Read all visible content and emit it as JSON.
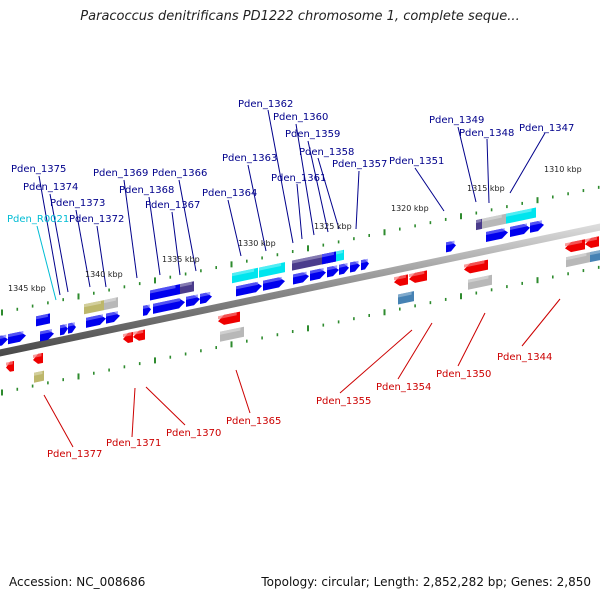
{
  "title": "Paracoccus denitrificans PD1222 chromosome 1, complete seque...",
  "footer": {
    "accession": "Accession: NC_008686",
    "summary": "Topology: circular; Length: 2,852,282 bp; Genes: 2,850"
  },
  "colors": {
    "forward_label": "#00008b",
    "reverse_label": "#cc0000",
    "rna_label": "#00bcd4",
    "forward_gene": "#0000ee",
    "reverse_gene": "#ee0000",
    "cyan_gene": "#00e5ee",
    "grey_gene": "#b8b8b8",
    "purple_gene": "#4b3c8c",
    "olive_gene": "#bdb76b",
    "steel_gene": "#4682b4",
    "tick": "#2e8b2e",
    "axis": "#8a8a8a"
  },
  "scale": {
    "ticks": [
      "1310 kbp",
      "1315 kbp",
      "1320 kbp",
      "1325 kbp",
      "1330 kbp",
      "1335 kbp",
      "1340 kbp",
      "1345 kbp"
    ]
  },
  "genes": {
    "forward": [
      "Pden_1347",
      "Pden_1348",
      "Pden_1349",
      "Pden_1351",
      "Pden_1357",
      "Pden_1358",
      "Pden_1359",
      "Pden_1360",
      "Pden_1361",
      "Pden_1362",
      "Pden_1363",
      "Pden_1364",
      "Pden_1366",
      "Pden_1367",
      "Pden_1368",
      "Pden_1369",
      "Pden_1372",
      "Pden_1373",
      "Pden_1374",
      "Pden_1375"
    ],
    "rna": [
      "Pden_R0021"
    ],
    "reverse": [
      "Pden_1344",
      "Pden_1350",
      "Pden_1354",
      "Pden_1355",
      "Pden_1365",
      "Pden_1370",
      "Pden_1371",
      "Pden_1377"
    ]
  }
}
